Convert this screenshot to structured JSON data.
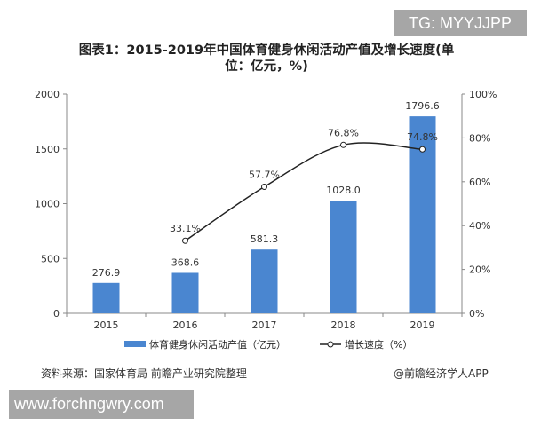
{
  "watermark_top": "TG: MYYJJPP",
  "watermark_bottom": "www.forchngwry.com",
  "source": "资料来源：国家体育局 前瞻产业研究院整理",
  "brand": "@前瞻经济学人APP",
  "chart_data": {
    "type": "bar+line",
    "title": "图表1：2015-2019年中国体育健身休闲活动产值及增长速度(单位：亿元，%)",
    "title_line1": "图表1：2015-2019年中国体育健身休闲活动产值及增长速度(单",
    "title_line2": "位：亿元，%)",
    "categories": [
      "2015",
      "2016",
      "2017",
      "2018",
      "2019"
    ],
    "y_left": {
      "range": [
        0,
        2000
      ],
      "ticks": [
        "0",
        "500",
        "1000",
        "1500",
        "2000"
      ]
    },
    "y_right": {
      "range": [
        0,
        100
      ],
      "ticks": [
        "0%",
        "20%",
        "40%",
        "60%",
        "80%",
        "100%"
      ]
    },
    "grid": false,
    "legend_placement": "bottom",
    "series": [
      {
        "name": "体育健身休闲活动产值（亿元）",
        "type": "bar",
        "axis": "left",
        "color": "#4a86d0",
        "values": [
          276.9,
          368.6,
          581.3,
          1028.0,
          1796.6
        ],
        "labels": [
          "276.9",
          "368.6",
          "581.3",
          "1028.0",
          "1796.6"
        ]
      },
      {
        "name": "增长速度（%）",
        "type": "line",
        "axis": "right",
        "color": "#222222",
        "values": [
          null,
          33.1,
          57.7,
          76.8,
          74.8
        ],
        "labels": [
          "",
          "33.1%",
          "57.7%",
          "76.8%",
          "74.8%"
        ]
      }
    ]
  }
}
